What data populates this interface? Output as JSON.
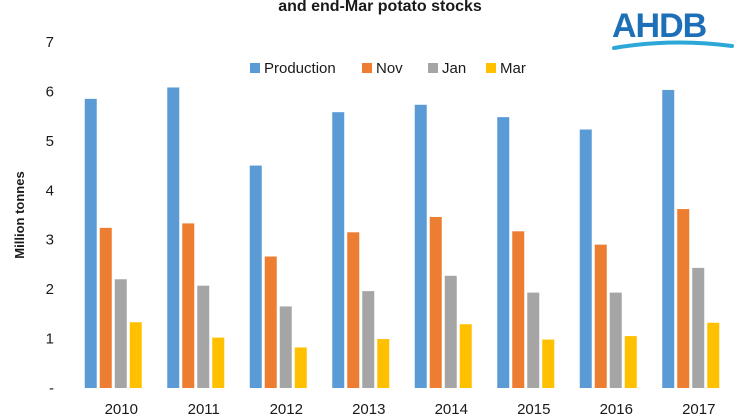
{
  "header": {
    "title": "and end-Mar potato stocks",
    "logo_text": "AHDB"
  },
  "colors": {
    "logo": "#1d6fb7",
    "logo_swoosh": "#2ca8d8"
  },
  "chart_data": {
    "type": "bar",
    "title": "and end-Mar potato stocks",
    "ylabel": "Million tonnes",
    "xlabel": "",
    "ylim": [
      0,
      7
    ],
    "y_ticks": [
      "-",
      "1",
      "2",
      "3",
      "4",
      "5",
      "6",
      "7"
    ],
    "grid": false,
    "legend": "top",
    "categories": [
      "2010",
      "2011",
      "2012",
      "2013",
      "2014",
      "2015",
      "2016",
      "2017"
    ],
    "series": [
      {
        "name": "Production",
        "color": "#5b9bd5",
        "values": [
          5.85,
          6.08,
          4.5,
          5.58,
          5.73,
          5.48,
          5.23,
          6.03
        ]
      },
      {
        "name": "Nov",
        "color": "#ed7d31",
        "values": [
          3.24,
          3.33,
          2.66,
          3.15,
          3.46,
          3.17,
          2.9,
          3.62
        ]
      },
      {
        "name": "Jan",
        "color": "#a5a5a5",
        "values": [
          2.2,
          2.07,
          1.65,
          1.96,
          2.27,
          1.93,
          1.93,
          2.43
        ]
      },
      {
        "name": "Mar",
        "color": "#ffc000",
        "values": [
          1.33,
          1.02,
          0.82,
          0.99,
          1.29,
          0.98,
          1.05,
          1.32
        ]
      }
    ]
  }
}
